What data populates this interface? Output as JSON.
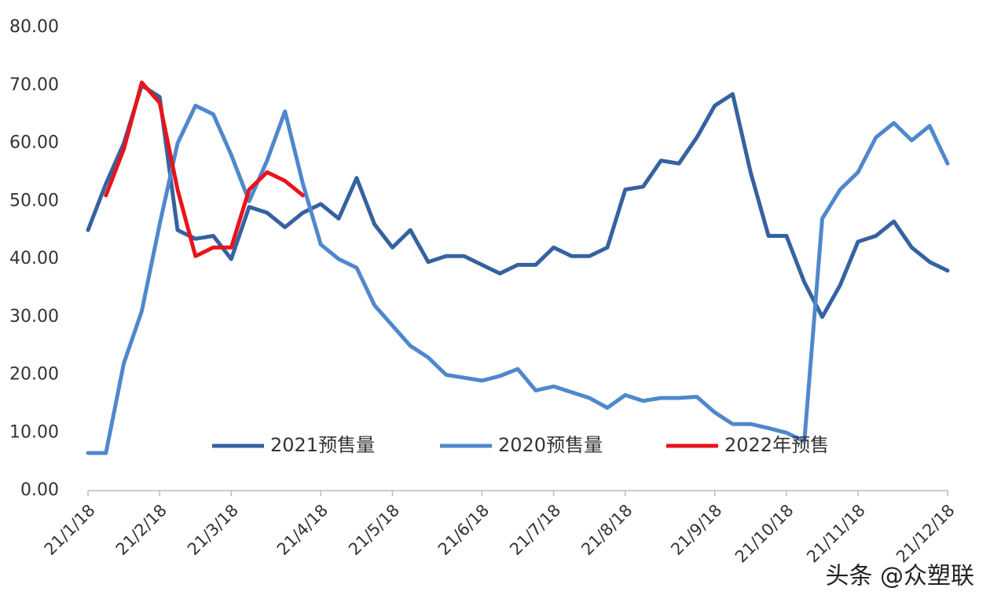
{
  "chart_data": {
    "type": "line",
    "categories": [
      "21/1/18",
      null,
      null,
      null,
      "21/2/18",
      null,
      null,
      null,
      "21/3/18",
      null,
      null,
      null,
      null,
      "21/4/18",
      null,
      null,
      null,
      "21/5/18",
      null,
      null,
      null,
      null,
      "21/6/18",
      null,
      null,
      null,
      "21/7/18",
      null,
      null,
      null,
      "21/8/18",
      null,
      null,
      null,
      null,
      "21/9/18",
      null,
      null,
      null,
      "21/10/18",
      null,
      null,
      null,
      "21/11/18",
      null,
      null,
      null,
      null,
      "21/12/18"
    ],
    "series": [
      {
        "name": "2021预售量",
        "color": "#3562a0",
        "values": [
          45,
          53,
          60,
          70,
          68,
          45,
          43.5,
          44,
          40,
          49,
          48,
          45.5,
          48,
          49.5,
          47,
          54,
          46,
          42,
          45,
          39.5,
          40.5,
          40.5,
          39,
          37.5,
          39,
          39,
          42,
          40.5,
          40.5,
          42,
          52,
          52.5,
          57,
          56.5,
          61,
          66.5,
          68.5,
          55,
          44,
          44,
          36,
          30,
          35.5,
          43,
          44,
          46.5,
          42,
          39.5,
          38
        ]
      },
      {
        "name": "2020预售量",
        "color": "#4f88cc",
        "values": [
          6.5,
          6.5,
          22,
          31,
          46,
          60,
          66.5,
          65,
          58,
          50,
          57,
          65.5,
          53,
          42.5,
          40,
          38.5,
          32,
          28.5,
          25,
          23,
          20,
          19.5,
          19,
          19.8,
          21,
          17.3,
          18,
          17,
          16,
          14.3,
          16.5,
          15.5,
          16,
          16,
          16.2,
          13.5,
          11.5,
          11.5,
          10.8,
          10,
          8.5,
          47,
          52,
          55,
          61,
          63.5,
          60.5,
          63,
          56.5
        ]
      },
      {
        "name": "2022年预售",
        "color": "#e8141c",
        "values": [
          null,
          51,
          59,
          70.5,
          67,
          52,
          40.5,
          42,
          42,
          52,
          55,
          53.5,
          51,
          null,
          null,
          null,
          null,
          null,
          null,
          null,
          null,
          null,
          null,
          null,
          null,
          null,
          null,
          null,
          null,
          null,
          null,
          null,
          null,
          null,
          null,
          null,
          null,
          null,
          null,
          null,
          null,
          null,
          null,
          null,
          null,
          null,
          null,
          null,
          null
        ]
      }
    ],
    "ylim": [
      0,
      80
    ],
    "yticks": [
      {
        "value": 0,
        "label": "0.00"
      },
      {
        "value": 10,
        "label": "10.00"
      },
      {
        "value": 20,
        "label": "20.00"
      },
      {
        "value": 30,
        "label": "30.00"
      },
      {
        "value": 40,
        "label": "40.00"
      },
      {
        "value": 50,
        "label": "50.00"
      },
      {
        "value": 60,
        "label": "60.00"
      },
      {
        "value": 70,
        "label": "70.00"
      },
      {
        "value": 80,
        "label": "80.00"
      }
    ],
    "grid": false,
    "legend": "bottom",
    "watermark": "头条 @众塑联"
  }
}
